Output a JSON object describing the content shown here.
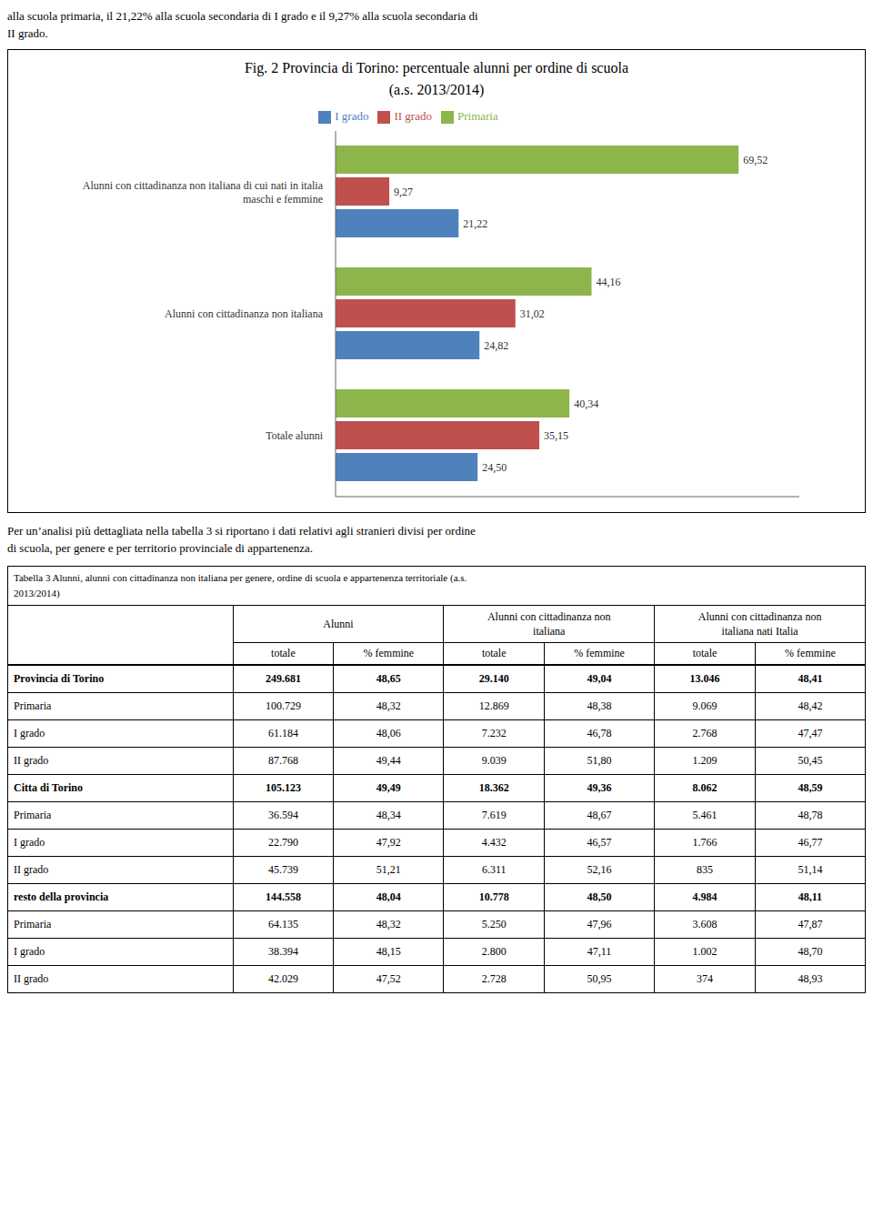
{
  "text_above": [
    "alla scuola primaria, il 21,22% alla scuola secondaria di I grado e il 9,27% alla scuola secondaria di",
    "II grado."
  ],
  "chart_data": {
    "type": "bar",
    "orientation": "horizontal",
    "title": "Fig. 2 Provincia di Torino: percentuale alunni per ordine di scuola",
    "subtitle": "(a.s. 2013/2014)",
    "categories": [
      "Alunni con cittadinanza non italiana di cui nati in italia\nmaschi e femmine",
      "Alunni con cittadinanza non italiana",
      "Totale alunni"
    ],
    "series": [
      {
        "name": "Primaria",
        "color": "#8db54b",
        "values": [
          69.52,
          44.16,
          40.34
        ],
        "value_labels": [
          "69,52",
          "44,16",
          "40,34"
        ]
      },
      {
        "name": "II grado",
        "color": "#c0504d",
        "values": [
          9.27,
          31.02,
          35.15
        ],
        "value_labels": [
          "9,27",
          "31,02",
          "35,15"
        ]
      },
      {
        "name": "I grado",
        "color": "#4f81bd",
        "values": [
          21.22,
          24.82,
          24.5
        ],
        "value_labels": [
          "21,22",
          "24,82",
          "24,50"
        ]
      }
    ],
    "xlim": [
      0,
      80
    ],
    "tick_labels": "y",
    "grid": false,
    "legend": "top",
    "data_labels": true
  },
  "text_below": [
    "Per un’analisi più dettagliata nella tabella 3 si riportano i dati relativi agli stranieri divisi per ordine",
    "di scuola, per genere e per territorio provinciale di appartenenza."
  ],
  "table": {
    "title": "Tabella 3 Alunni, alunni con cittadinanza non italiana per genere, ordine di scuola e appartenenza territoriale (a.s.\n2013/2014)",
    "group_headers": [
      "Alunni",
      "Alunni con cittadinanza non\nitaliana",
      "Alunni con cittadinanza non\nitaliana nati Italia"
    ],
    "sub_headers": [
      "totale",
      "% femmine",
      "totale",
      "% femmine",
      "totale",
      "% femmine"
    ],
    "rows": [
      {
        "label": "Provincia di Torino",
        "values": [
          "249.681",
          "48,65",
          "29.140",
          "49,04",
          "13.046",
          "48,41"
        ],
        "bold": true
      },
      {
        "label": "Primaria",
        "values": [
          "100.729",
          "48,32",
          "12.869",
          "48,38",
          "9.069",
          "48,42"
        ],
        "bold": false
      },
      {
        "label": "I grado",
        "values": [
          "61.184",
          "48,06",
          "7.232",
          "46,78",
          "2.768",
          "47,47"
        ],
        "bold": false
      },
      {
        "label": "II grado",
        "values": [
          "87.768",
          "49,44",
          "9.039",
          "51,80",
          "1.209",
          "50,45"
        ],
        "bold": false
      },
      {
        "label": "Citta di Torino",
        "values": [
          "105.123",
          "49,49",
          "18.362",
          "49,36",
          "8.062",
          "48,59"
        ],
        "bold": true
      },
      {
        "label": "Primaria",
        "values": [
          "36.594",
          "48,34",
          "7.619",
          "48,67",
          "5.461",
          "48,78"
        ],
        "bold": false
      },
      {
        "label": "I grado",
        "values": [
          "22.790",
          "47,92",
          "4.432",
          "46,57",
          "1.766",
          "46,77"
        ],
        "bold": false
      },
      {
        "label": "II grado",
        "values": [
          "45.739",
          "51,21",
          "6.311",
          "52,16",
          "835",
          "51,14"
        ],
        "bold": false
      },
      {
        "label": "resto della provincia",
        "values": [
          "144.558",
          "48,04",
          "10.778",
          "48,50",
          "4.984",
          "48,11"
        ],
        "bold": true
      },
      {
        "label": "Primaria",
        "values": [
          "64.135",
          "48,32",
          "5.250",
          "47,96",
          "3.608",
          "47,87"
        ],
        "bold": false
      },
      {
        "label": "I grado",
        "values": [
          "38.394",
          "48,15",
          "2.800",
          "47,11",
          "1.002",
          "48,70"
        ],
        "bold": false
      },
      {
        "label": "II grado",
        "values": [
          "42.029",
          "47,52",
          "2.728",
          "50,95",
          "374",
          "48,93"
        ],
        "bold": false
      }
    ]
  }
}
